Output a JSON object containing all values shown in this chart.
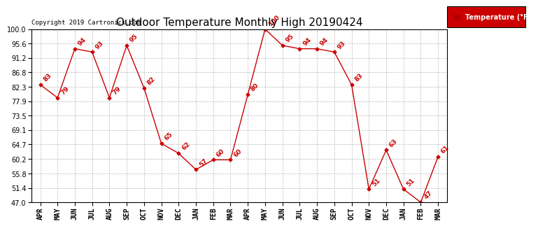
{
  "title": "Outdoor Temperature Monthly High 20190424",
  "copyright": "Copyright 2019 Cartronics.com",
  "legend_label": "Temperature (°F)",
  "x_labels": [
    "APR",
    "MAY",
    "JUN",
    "JUL",
    "AUG",
    "SEP",
    "OCT",
    "NOV",
    "DEC",
    "JAN",
    "FEB",
    "MAR",
    "APR",
    "MAY",
    "JUN",
    "JUL",
    "AUG",
    "SEP",
    "OCT",
    "NOV",
    "DEC",
    "JAN",
    "FEB",
    "MAR"
  ],
  "y_values": [
    83,
    79,
    94,
    93,
    79,
    95,
    82,
    65,
    62,
    57,
    60,
    60,
    80,
    100,
    95,
    94,
    94,
    93,
    83,
    51,
    63,
    51,
    47,
    61
  ],
  "ylim": [
    47.0,
    100.0
  ],
  "yticks": [
    47.0,
    51.4,
    55.8,
    60.2,
    64.7,
    69.1,
    73.5,
    77.9,
    82.3,
    86.8,
    91.2,
    95.6,
    100.0
  ],
  "line_color": "#cc0000",
  "marker_color": "#cc0000",
  "bg_color": "#ffffff",
  "grid_color": "#bbbbbb",
  "title_color": "#000000",
  "legend_bg": "#cc0000",
  "legend_text_color": "#ffffff",
  "annotation_color": "#cc0000",
  "title_fontsize": 11,
  "label_fontsize": 7,
  "annotation_fontsize": 6.5,
  "copyright_fontsize": 6.5
}
